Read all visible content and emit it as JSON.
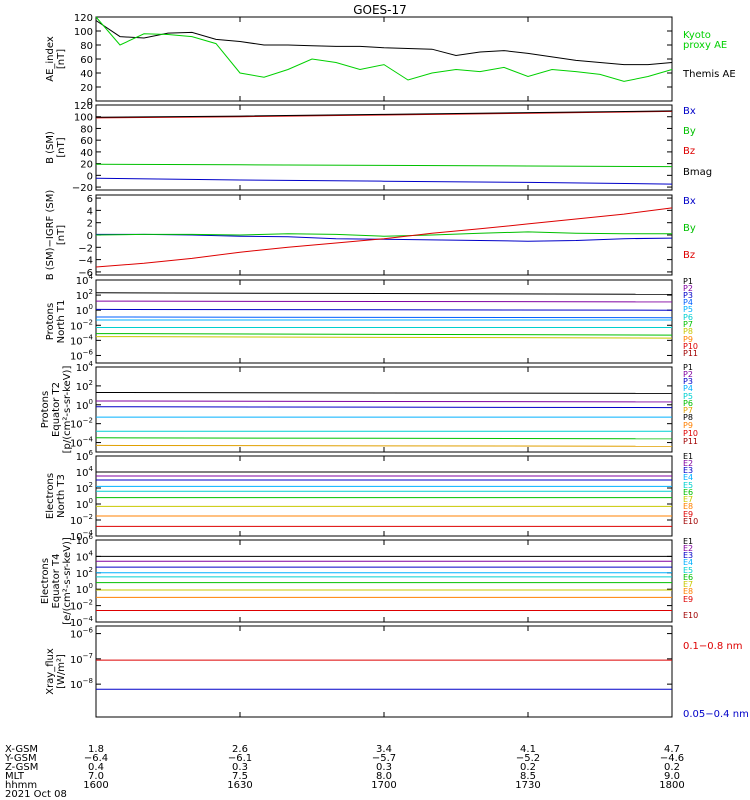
{
  "title": "GOES-17",
  "chart_data": [
    {
      "type": "line",
      "ylabel": [
        "AE_index",
        "[nT]"
      ],
      "ylim": [
        0,
        120
      ],
      "yticks": [
        0,
        20,
        40,
        60,
        80,
        100,
        120
      ],
      "yticklabels": [
        "0",
        "20",
        "40",
        "60",
        "80",
        "100",
        "120"
      ],
      "x": [
        0,
        5,
        10,
        15,
        20,
        25,
        30,
        35,
        40,
        45,
        50,
        55,
        60,
        65,
        70,
        75,
        80,
        85,
        90,
        95,
        100,
        105,
        110,
        115,
        120
      ],
      "series": [
        {
          "name": "Themis AE",
          "color": "#000000",
          "values": [
            115,
            92,
            90,
            97,
            98,
            88,
            85,
            80,
            80,
            79,
            78,
            78,
            76,
            75,
            74,
            65,
            70,
            72,
            68,
            63,
            58,
            55,
            52,
            52,
            55
          ]
        },
        {
          "name": "Kyoto proxy AE",
          "color": "#00d000",
          "values": [
            120,
            80,
            96,
            95,
            92,
            82,
            40,
            34,
            45,
            60,
            55,
            45,
            52,
            30,
            40,
            45,
            42,
            48,
            35,
            45,
            42,
            38,
            28,
            35,
            45
          ]
        }
      ],
      "legend": [
        "Kyoto",
        "proxy AE",
        "Themis AE"
      ]
    },
    {
      "type": "line",
      "ylabel": [
        "B (SM)",
        "[nT]"
      ],
      "ylim": [
        -25,
        120
      ],
      "yticks": [
        -20,
        0,
        20,
        40,
        60,
        80,
        100,
        120
      ],
      "yticklabels": [
        "−20",
        "0",
        "20",
        "40",
        "60",
        "80",
        "100",
        "120"
      ],
      "x": [
        0,
        30,
        60,
        90,
        120
      ],
      "series": [
        {
          "name": "Bx",
          "color": "#0000c8",
          "values": [
            -5,
            -8,
            -10,
            -12,
            -15
          ]
        },
        {
          "name": "By",
          "color": "#00c000",
          "values": [
            19,
            18,
            17,
            16,
            15
          ]
        },
        {
          "name": "Bz",
          "color": "#dd0000",
          "values": [
            98,
            100,
            103,
            106,
            109
          ]
        },
        {
          "name": "Bmag",
          "color": "#000000",
          "values": [
            99,
            101,
            104,
            107,
            110
          ]
        }
      ],
      "legend": [
        "Bx",
        "By",
        "Bz",
        "Bmag"
      ]
    },
    {
      "type": "line",
      "ylabel": [
        "B (SM)−IGRF (SM)",
        "[nT]"
      ],
      "ylim": [
        -6.5,
        6.5
      ],
      "yticks": [
        -6,
        -4,
        -2,
        0,
        2,
        4,
        6
      ],
      "yticklabels": [
        "−6",
        "−4",
        "−2",
        "0",
        "2",
        "4",
        "6"
      ],
      "x": [
        0,
        10,
        20,
        30,
        40,
        50,
        60,
        70,
        80,
        90,
        100,
        110,
        120
      ],
      "series": [
        {
          "name": "Bx",
          "color": "#0000c8",
          "values": [
            0.1,
            0.1,
            0,
            -0.2,
            -0.3,
            -0.6,
            -0.7,
            -0.8,
            -0.9,
            -1.0,
            -0.9,
            -0.6,
            -0.5
          ]
        },
        {
          "name": "By",
          "color": "#00c000",
          "values": [
            0,
            0.1,
            0.1,
            0,
            0.2,
            0.1,
            -0.2,
            0,
            0.3,
            0.5,
            0.3,
            0.2,
            0.2
          ]
        },
        {
          "name": "Bz",
          "color": "#dd0000",
          "values": [
            -5.2,
            -4.6,
            -3.8,
            -2.8,
            -2.0,
            -1.3,
            -0.6,
            0.3,
            1.0,
            1.8,
            2.6,
            3.4,
            4.4
          ]
        }
      ],
      "legend": [
        "Bx",
        "By",
        "Bz"
      ]
    },
    {
      "type": "line",
      "log": true,
      "ylabel": [
        "Protons",
        "North T1"
      ],
      "ylim_log10": [
        -7,
        4
      ],
      "yticks_log10": [
        4,
        2,
        0,
        -2,
        -4,
        -6
      ],
      "x": [
        0,
        120
      ],
      "series": [
        {
          "name": "P1",
          "color": "#000000",
          "log10": [
            2.3,
            2.1
          ]
        },
        {
          "name": "P2",
          "color": "#8000a0",
          "log10": [
            1.2,
            1.1
          ]
        },
        {
          "name": "P3",
          "color": "#0000c8",
          "log10": [
            0.1,
            0.0
          ]
        },
        {
          "name": "P4",
          "color": "#0060ff",
          "log10": [
            -0.9,
            -1.0
          ]
        },
        {
          "name": "P5",
          "color": "#00b0ff",
          "log10": [
            -1.3,
            -1.3
          ]
        },
        {
          "name": "P6",
          "color": "#00d0d0",
          "log10": [
            -2.3,
            -2.3
          ]
        },
        {
          "name": "P7",
          "color": "#00c000",
          "log10": [
            -3.1,
            -3.3
          ]
        },
        {
          "name": "P8",
          "color": "#c8c800",
          "log10": [
            -3.5,
            -3.7
          ]
        }
      ],
      "legend": [
        "P1",
        "P2",
        "P3",
        "P4",
        "P5",
        "P6",
        "P7",
        "P8",
        "P9",
        "P10",
        "P11"
      ]
    },
    {
      "type": "line",
      "log": true,
      "ylabel": [
        "Protons",
        "Equator T2",
        "[p/(cm²-s-sr-keV)]"
      ],
      "ylim_log10": [
        -5,
        4
      ],
      "yticks_log10": [
        4,
        2,
        0,
        -2,
        -4
      ],
      "x": [
        0,
        120
      ],
      "series": [
        {
          "name": "P1",
          "color": "#000000",
          "log10": [
            1.3,
            1.2
          ]
        },
        {
          "name": "P2",
          "color": "#8000a0",
          "log10": [
            0.4,
            0.3
          ]
        },
        {
          "name": "P3",
          "color": "#0000c8",
          "log10": [
            -0.2,
            -0.3
          ]
        },
        {
          "name": "P4",
          "color": "#00b0ff",
          "log10": [
            -1.3,
            -1.3
          ]
        },
        {
          "name": "P5",
          "color": "#00d0d0",
          "log10": [
            -2.8,
            -2.8
          ]
        },
        {
          "name": "P6",
          "color": "#00c000",
          "log10": [
            -3.5,
            -3.6
          ]
        },
        {
          "name": "P7",
          "color": "#e0a000",
          "log10": [
            -4.3,
            -4.4
          ]
        }
      ],
      "legend": [
        "P1",
        "P2",
        "P3",
        "P4",
        "P5",
        "P6",
        "P7",
        "P8",
        "P9",
        "P10",
        "P11"
      ]
    },
    {
      "type": "line",
      "log": true,
      "ylabel": [
        "Electrons",
        "North T3"
      ],
      "ylim_log10": [
        -4,
        6
      ],
      "yticks_log10": [
        6,
        4,
        2,
        0,
        -2,
        -4
      ],
      "x": [
        0,
        120
      ],
      "series": [
        {
          "name": "E1",
          "color": "#000000",
          "log10": [
            4.0,
            4.0
          ]
        },
        {
          "name": "E2",
          "color": "#8000a0",
          "log10": [
            3.5,
            3.5
          ]
        },
        {
          "name": "E3",
          "color": "#0000c8",
          "log10": [
            3.0,
            3.0
          ]
        },
        {
          "name": "E4",
          "color": "#00b0ff",
          "log10": [
            2.2,
            2.2
          ]
        },
        {
          "name": "E5",
          "color": "#00d0d0",
          "log10": [
            1.6,
            1.6
          ]
        },
        {
          "name": "E6",
          "color": "#00c000",
          "log10": [
            0.8,
            0.8
          ]
        },
        {
          "name": "E7",
          "color": "#c8c800",
          "log10": [
            -0.3,
            -0.3
          ]
        },
        {
          "name": "E8",
          "color": "#ff8000",
          "log10": [
            -1.5,
            -1.5
          ]
        },
        {
          "name": "E9",
          "color": "#dd0000",
          "log10": [
            -2.8,
            -2.8
          ]
        }
      ],
      "legend": [
        "E1",
        "E2",
        "E3",
        "E4",
        "E5",
        "E6",
        "E7",
        "E8",
        "E9",
        "E10"
      ]
    },
    {
      "type": "line",
      "log": true,
      "ylabel": [
        "Electrons",
        "Equator T4",
        "[e/(cm²-s-sr-keV)]"
      ],
      "ylim_log10": [
        -4,
        6
      ],
      "yticks_log10": [
        6,
        4,
        2,
        0,
        -2,
        -4
      ],
      "x": [
        0,
        120
      ],
      "series": [
        {
          "name": "E1",
          "color": "#000000",
          "log10": [
            4.0,
            4.0
          ]
        },
        {
          "name": "E2",
          "color": "#8000a0",
          "log10": [
            3.4,
            3.4
          ]
        },
        {
          "name": "E3",
          "color": "#0000c8",
          "log10": [
            2.7,
            2.7
          ]
        },
        {
          "name": "E4",
          "color": "#00b0ff",
          "log10": [
            2.0,
            2.0
          ]
        },
        {
          "name": "E5",
          "color": "#00d0d0",
          "log10": [
            1.5,
            1.5
          ]
        },
        {
          "name": "E6",
          "color": "#00c000",
          "log10": [
            0.8,
            0.8
          ]
        },
        {
          "name": "E7",
          "color": "#c8c800",
          "log10": [
            -0.1,
            -0.1
          ]
        },
        {
          "name": "E8",
          "color": "#ff8000",
          "log10": [
            -1.0,
            -1.0
          ]
        },
        {
          "name": "E9",
          "color": "#dd0000",
          "log10": [
            -2.6,
            -2.6
          ]
        }
      ],
      "legend": [
        "E1",
        "E2",
        "E3",
        "E4",
        "E5",
        "E6",
        "E7",
        "E8",
        "E9",
        "E10"
      ]
    },
    {
      "type": "line",
      "log": true,
      "ylabel": [
        "Xray_flux",
        "[W/m²]"
      ],
      "ylim_log10": [
        -9,
        -8
      ],
      "yticks_log10": [
        -8,
        -7,
        -6,
        -5
      ],
      "x": [
        0,
        120
      ],
      "series": [
        {
          "name": "0.1−0.8 nm",
          "color": "#dd0000",
          "log10": [
            -7.05,
            -7.05
          ]
        },
        {
          "name": "0.05−0.4 nm",
          "color": "#0000c8",
          "log10": [
            -8.2,
            -8.2
          ]
        }
      ],
      "legend": [
        "0.1−0.8 nm",
        "0.05−0.4 nm"
      ]
    }
  ],
  "xaxis": {
    "rows": [
      {
        "label": "X-GSM",
        "values": [
          "1.8",
          "2.6",
          "3.4",
          "4.1",
          "4.7"
        ]
      },
      {
        "label": "Y-GSM",
        "values": [
          "−6.4",
          "−6.1",
          "−5.7",
          "−5.2",
          "−4.6"
        ]
      },
      {
        "label": "Z-GSM",
        "values": [
          "0.4",
          "0.3",
          "0.3",
          "0.2",
          "0.2"
        ]
      },
      {
        "label": "MLT",
        "values": [
          "7.0",
          "7.5",
          "8.0",
          "8.5",
          "9.0"
        ]
      },
      {
        "label": "hhmm",
        "values": [
          "1600",
          "1630",
          "1700",
          "1730",
          "1800"
        ]
      }
    ],
    "date": "2021 Oct 08"
  }
}
